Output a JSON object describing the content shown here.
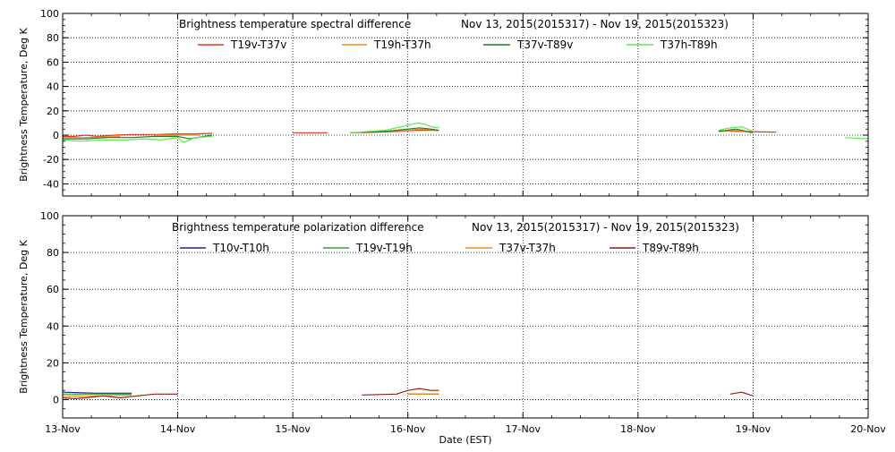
{
  "colors": {
    "background": "#ffffff",
    "axis": "#000000",
    "grid": "#000000",
    "T19v-T37v": "#e8321e",
    "T19h-T37h": "#f08c1e",
    "T37v-T89v": "#1e7d1e",
    "T37h-T89h": "#5ae650",
    "T10v-T10h": "#1e288c",
    "T19v-T19h": "#32a032",
    "T37v-T37h": "#f08c1e",
    "T89v-T89h": "#8c1e14"
  },
  "x_axis": {
    "label": "Date (EST)",
    "ticks": [
      "13-Nov",
      "14-Nov",
      "15-Nov",
      "16-Nov",
      "17-Nov",
      "18-Nov",
      "19-Nov",
      "20-Nov"
    ]
  },
  "chart_data": [
    {
      "type": "line",
      "title": "Brightness temperature spectral difference",
      "date_range": "Nov 13, 2015(2015317) - Nov 19, 2015(2015323)",
      "ylabel": "Brightness Temperature, Deg K",
      "xlim": [
        0,
        7
      ],
      "ylim": [
        -50,
        100
      ],
      "yticks": [
        -40,
        -20,
        0,
        20,
        40,
        60,
        80,
        100
      ],
      "x_unit": "days since 13-Nov",
      "grid": "dotted vertical at day ticks",
      "legend_placement": "top",
      "series": [
        {
          "name": "T19v-T37v",
          "color": "#e8321e",
          "x": [
            0,
            0.1,
            0.2,
            0.3,
            0.45,
            0.6,
            0.8,
            1.0,
            1.15,
            1.3,
            1.6,
            2.0,
            2.3,
            2.6,
            2.9,
            3.05,
            3.15,
            3.2,
            3.27,
            3.9,
            4.3,
            4.8,
            5.3,
            5.7,
            5.9,
            6.2,
            6.6,
            7.0
          ],
          "y": [
            -1,
            -1,
            0,
            -1,
            0,
            0.5,
            0.5,
            1,
            1,
            1.5,
            2,
            2,
            2,
            2,
            3,
            4,
            4,
            4,
            4,
            3,
            3,
            3,
            3,
            3.5,
            3,
            2.5,
            2,
            1.5
          ]
        },
        {
          "name": "T19h-T37h",
          "color": "#f08c1e",
          "x": [
            0,
            0.2,
            0.5,
            0.8,
            1.0,
            1.2,
            1.5,
            2.0,
            2.5,
            2.8,
            3.0,
            3.1,
            3.2,
            3.27,
            3.9,
            4.3,
            4.8,
            5.3,
            5.7,
            5.85,
            6.0,
            6.4,
            7.0
          ],
          "y": [
            -2,
            -2,
            -1,
            0,
            0,
            0,
            1,
            1.5,
            2,
            3,
            4,
            5,
            4.5,
            4,
            2,
            2,
            2,
            2,
            3,
            4,
            2,
            1,
            0
          ]
        },
        {
          "name": "T37v-T89v",
          "color": "#1e7d1e",
          "x": [
            0,
            0.2,
            0.4,
            0.6,
            0.8,
            1.0,
            1.1,
            1.3,
            1.6,
            2.0,
            2.5,
            2.8,
            3.0,
            3.1,
            3.2,
            3.27,
            3.9,
            4.3,
            4.8,
            5.3,
            5.7,
            5.85,
            6.0,
            6.4,
            7.0
          ],
          "y": [
            -3,
            -3,
            -2,
            -2,
            -1,
            -1,
            -3,
            0,
            1,
            1.5,
            2,
            3,
            5,
            6,
            5,
            4,
            2,
            2,
            2.5,
            2.5,
            3,
            5,
            2,
            0,
            -1
          ]
        },
        {
          "name": "T37h-T89h",
          "color": "#5ae650",
          "x": [
            0,
            0.15,
            0.35,
            0.55,
            0.7,
            0.85,
            1.0,
            1.05,
            1.15,
            1.3,
            1.6,
            2.0,
            2.5,
            2.8,
            3.0,
            3.08,
            3.15,
            3.2,
            3.27,
            3.9,
            4.3,
            4.8,
            5.3,
            5.7,
            5.8,
            5.9,
            6.0,
            6.4,
            6.8,
            7.0
          ],
          "y": [
            -4,
            -5,
            -4,
            -4,
            -3,
            -4,
            -2,
            -6,
            -2,
            -1,
            1,
            1,
            2,
            4,
            8,
            10,
            9,
            7,
            6,
            2,
            2,
            3,
            3,
            4,
            6,
            7,
            3,
            0,
            -2,
            -3
          ]
        }
      ]
    },
    {
      "type": "line",
      "title": "Brightness temperature polarization difference",
      "date_range": "Nov 13, 2015(2015317) - Nov 19, 2015(2015323)",
      "ylabel": "Brightness Temperature, Deg K",
      "xlim": [
        0,
        7
      ],
      "ylim": [
        -10,
        100
      ],
      "yticks": [
        0,
        20,
        40,
        60,
        80,
        100
      ],
      "x_unit": "days since 13-Nov",
      "grid": "dotted vertical at day ticks",
      "legend_placement": "top",
      "series": [
        {
          "name": "T10v-T10h",
          "color": "#1e288c",
          "x": [
            0,
            0.3,
            0.6,
            1.0,
            1.4,
            1.8,
            2.2,
            2.6,
            3.0,
            3.27,
            3.9,
            4.4,
            4.9,
            5.4,
            5.9,
            6.4,
            7.0
          ],
          "y": [
            4,
            3.5,
            3.5,
            3,
            3,
            3,
            2.5,
            3,
            3,
            3,
            2.5,
            2.5,
            2.5,
            2.5,
            2.5,
            3,
            3
          ]
        },
        {
          "name": "T19v-T19h",
          "color": "#32a032",
          "x": [
            0,
            0.3,
            0.6,
            1.0,
            1.4,
            1.8,
            2.2,
            2.6,
            3.0,
            3.27,
            3.9,
            4.4,
            4.9,
            5.4,
            5.9,
            6.4,
            7.0
          ],
          "y": [
            3,
            3,
            3,
            3,
            3,
            3.5,
            3,
            3,
            3,
            3,
            2.5,
            2.5,
            3,
            3,
            2.5,
            2.5,
            2.5
          ]
        },
        {
          "name": "T37v-T37h",
          "color": "#f08c1e",
          "x": [
            0,
            0.3,
            0.6,
            1.0,
            1.4,
            1.8,
            2.2,
            2.6,
            3.0,
            3.27,
            3.9,
            4.4,
            4.9,
            5.4,
            5.9,
            6.4,
            7.0
          ],
          "y": [
            2,
            2,
            2.5,
            2.5,
            2.5,
            2.5,
            2.5,
            2.5,
            3,
            3,
            2,
            2,
            2,
            2,
            2,
            2,
            2
          ]
        },
        {
          "name": "T89v-T89h",
          "color": "#8c1e14",
          "x": [
            0,
            0.1,
            0.2,
            0.35,
            0.5,
            0.65,
            0.8,
            1.0,
            1.4,
            1.8,
            2.2,
            2.6,
            2.9,
            3.0,
            3.1,
            3.2,
            3.27,
            3.9,
            4.4,
            4.9,
            5.4,
            5.8,
            5.9,
            6.0,
            6.4,
            7.0
          ],
          "y": [
            1,
            0.5,
            1,
            2,
            1,
            2,
            3,
            3,
            3,
            3,
            2.5,
            2.5,
            3,
            5,
            6,
            5,
            5,
            2,
            2,
            2,
            2,
            3,
            4,
            2,
            1.5,
            1
          ]
        }
      ]
    }
  ]
}
